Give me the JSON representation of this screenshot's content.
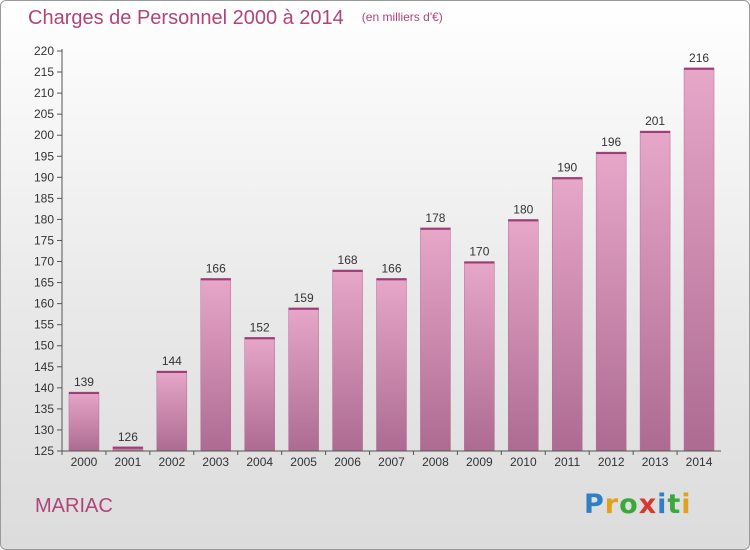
{
  "header": {
    "title": "Charges de Personnel 2000 à 2014",
    "subtitle": "(en milliers d'€)"
  },
  "footer": {
    "commune": "MARIAC",
    "brand": "Proxiti"
  },
  "colors": {
    "accent": "#b0457a",
    "bar_top": "#e7a7c9",
    "bar_bottom": "#ad6b91"
  },
  "chart_data": {
    "type": "bar",
    "categories": [
      "2000",
      "2001",
      "2002",
      "2003",
      "2004",
      "2005",
      "2006",
      "2007",
      "2008",
      "2009",
      "2010",
      "2011",
      "2012",
      "2013",
      "2014"
    ],
    "values": [
      139,
      126,
      144,
      166,
      152,
      159,
      168,
      166,
      178,
      170,
      180,
      190,
      196,
      201,
      216
    ],
    "title": "Charges de Personnel 2000 à 2014",
    "subtitle": "(en milliers d'€)",
    "ylim": [
      125,
      220
    ],
    "yticks": [
      125,
      130,
      135,
      140,
      145,
      150,
      155,
      160,
      165,
      170,
      175,
      180,
      185,
      190,
      195,
      200,
      205,
      210,
      215,
      220
    ],
    "grid": false,
    "data_labels": true
  }
}
